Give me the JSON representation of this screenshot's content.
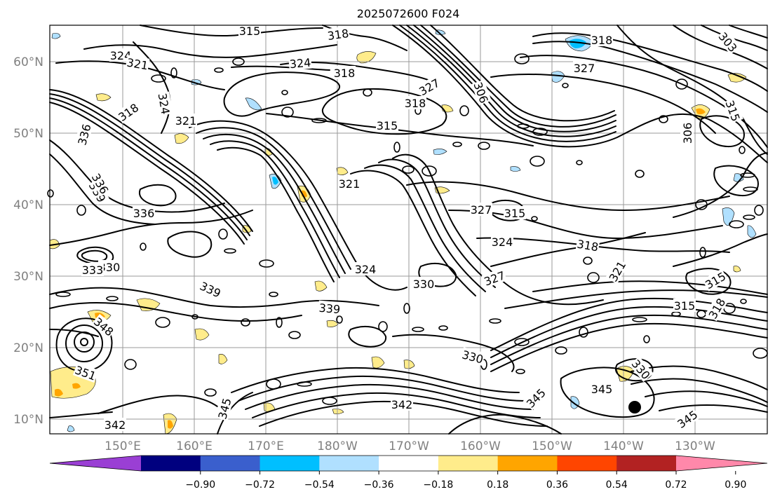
{
  "title": "2025072600 F024",
  "lat_ticks": [
    "60°N",
    "50°N",
    "40°N",
    "30°N",
    "20°N",
    "10°N"
  ],
  "lon_ticks": [
    "150°E",
    "160°E",
    "170°E",
    "180°W",
    "170°W",
    "160°W",
    "150°W",
    "140°W",
    "130°W"
  ],
  "colorbar": {
    "ticks": [
      "−0.90",
      "−0.72",
      "−0.54",
      "−0.36",
      "−0.18",
      "0.18",
      "0.36",
      "0.54",
      "0.72",
      "0.90"
    ],
    "colors": [
      "#9a3fd4",
      "#00007f",
      "#3a5fcd",
      "#00bfff",
      "#b0e0ff",
      "#ffffff",
      "#ffec8b",
      "#ffa500",
      "#ff4500",
      "#b22222",
      "#ff88aa"
    ]
  },
  "contour_labels": [
    {
      "text": "315"
    },
    {
      "text": "318"
    },
    {
      "text": "324"
    },
    {
      "text": "321"
    },
    {
      "text": "324"
    },
    {
      "text": "318"
    },
    {
      "text": "327"
    },
    {
      "text": "306"
    },
    {
      "text": "318"
    },
    {
      "text": "303"
    },
    {
      "text": "327"
    },
    {
      "text": "318"
    },
    {
      "text": "324"
    },
    {
      "text": "321"
    },
    {
      "text": "315"
    },
    {
      "text": "318"
    },
    {
      "text": "321"
    },
    {
      "text": "336"
    },
    {
      "text": "336"
    },
    {
      "text": "339"
    },
    {
      "text": "336"
    },
    {
      "text": "330"
    },
    {
      "text": "333"
    },
    {
      "text": "324"
    },
    {
      "text": "327"
    },
    {
      "text": "315"
    },
    {
      "text": "324"
    },
    {
      "text": "318"
    },
    {
      "text": "327"
    },
    {
      "text": "321"
    },
    {
      "text": "315"
    },
    {
      "text": "318"
    },
    {
      "text": "339"
    },
    {
      "text": "339"
    },
    {
      "text": "330"
    },
    {
      "text": "348"
    },
    {
      "text": "351"
    },
    {
      "text": "330"
    },
    {
      "text": "330"
    },
    {
      "text": "345"
    },
    {
      "text": "342"
    },
    {
      "text": "345"
    },
    {
      "text": "342"
    },
    {
      "text": "345"
    },
    {
      "text": "345"
    },
    {
      "text": "315"
    },
    {
      "text": "306"
    },
    {
      "text": "315"
    }
  ]
}
